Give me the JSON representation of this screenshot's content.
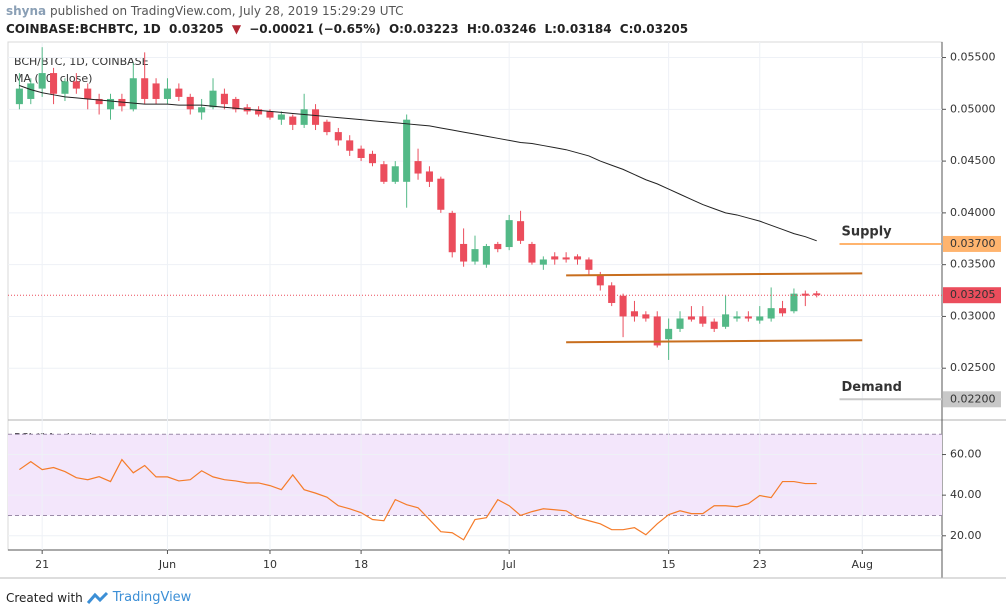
{
  "header": {
    "author": "shyna",
    "published": "published on TradingView.com, July 28, 2019 15:29:29 UTC",
    "symbol": "COINBASE:BCHBTC, 1D",
    "last": "0.03205",
    "change": "−0.00021 (−0.65%)",
    "ohlc": [
      "O:0.03223",
      "H:0.03246",
      "L:0.03184",
      "C:0.03205"
    ]
  },
  "footer": {
    "text": "Created with",
    "brand": "TradingView"
  },
  "chart_data": {
    "type": "candlestick",
    "title": "BCH/BTC, 1D, COINBASE",
    "x": [
      "2019-05-19",
      "2019-05-20",
      "2019-05-21",
      "2019-05-22",
      "2019-05-23",
      "2019-05-24",
      "2019-05-25",
      "2019-05-26",
      "2019-05-27",
      "2019-05-28",
      "2019-05-29",
      "2019-05-30",
      "2019-05-31",
      "2019-06-01",
      "2019-06-02",
      "2019-06-03",
      "2019-06-04",
      "2019-06-05",
      "2019-06-06",
      "2019-06-07",
      "2019-06-08",
      "2019-06-09",
      "2019-06-10",
      "2019-06-11",
      "2019-06-12",
      "2019-06-13",
      "2019-06-14",
      "2019-06-15",
      "2019-06-16",
      "2019-06-17",
      "2019-06-18",
      "2019-06-19",
      "2019-06-20",
      "2019-06-21",
      "2019-06-22",
      "2019-06-23",
      "2019-06-24",
      "2019-06-25",
      "2019-06-26",
      "2019-06-27",
      "2019-06-28",
      "2019-06-29",
      "2019-06-30",
      "2019-07-01",
      "2019-07-02",
      "2019-07-03",
      "2019-07-04",
      "2019-07-05",
      "2019-07-06",
      "2019-07-07",
      "2019-07-08",
      "2019-07-09",
      "2019-07-10",
      "2019-07-11",
      "2019-07-12",
      "2019-07-13",
      "2019-07-14",
      "2019-07-15",
      "2019-07-16",
      "2019-07-17",
      "2019-07-18",
      "2019-07-19",
      "2019-07-20",
      "2019-07-21",
      "2019-07-22",
      "2019-07-23",
      "2019-07-24",
      "2019-07-25",
      "2019-07-26",
      "2019-07-27",
      "2019-07-28"
    ],
    "open": [
      0.0505,
      0.051,
      0.052,
      0.0535,
      0.0515,
      0.0527,
      0.052,
      0.051,
      0.05,
      0.051,
      0.05,
      0.053,
      0.0525,
      0.051,
      0.052,
      0.0512,
      0.0497,
      0.0502,
      0.0515,
      0.051,
      0.0502,
      0.05,
      0.0498,
      0.049,
      0.0493,
      0.0485,
      0.05,
      0.0488,
      0.0478,
      0.047,
      0.0462,
      0.0457,
      0.0447,
      0.043,
      0.043,
      0.045,
      0.044,
      0.0433,
      0.04,
      0.037,
      0.0353,
      0.035,
      0.037,
      0.0367,
      0.0392,
      0.037,
      0.035,
      0.0358,
      0.0357,
      0.0358,
      0.0355,
      0.034,
      0.033,
      0.032,
      0.0305,
      0.0302,
      0.03,
      0.0278,
      0.0288,
      0.03,
      0.03,
      0.0295,
      0.029,
      0.0298,
      0.03,
      0.0296,
      0.0298,
      0.0308,
      0.0305,
      0.0322,
      0.03223
    ],
    "high": [
      0.0535,
      0.053,
      0.056,
      0.054,
      0.053,
      0.0535,
      0.0525,
      0.0515,
      0.0515,
      0.0515,
      0.0545,
      0.0555,
      0.053,
      0.053,
      0.0525,
      0.0515,
      0.051,
      0.053,
      0.052,
      0.0512,
      0.0505,
      0.0503,
      0.05,
      0.0498,
      0.0495,
      0.0515,
      0.0505,
      0.049,
      0.0482,
      0.0475,
      0.0465,
      0.046,
      0.045,
      0.045,
      0.0495,
      0.0462,
      0.0445,
      0.0435,
      0.0402,
      0.0385,
      0.0378,
      0.037,
      0.0372,
      0.0398,
      0.0402,
      0.0372,
      0.0358,
      0.0362,
      0.0362,
      0.036,
      0.0357,
      0.0343,
      0.0333,
      0.0322,
      0.0315,
      0.0305,
      0.0305,
      0.0298,
      0.0305,
      0.031,
      0.031,
      0.0298,
      0.032,
      0.0305,
      0.0305,
      0.031,
      0.0328,
      0.0315,
      0.0327,
      0.0325,
      0.03246
    ],
    "low": [
      0.05,
      0.0505,
      0.0512,
      0.0505,
      0.0508,
      0.0515,
      0.05,
      0.0495,
      0.049,
      0.0498,
      0.0498,
      0.0505,
      0.0505,
      0.0505,
      0.0508,
      0.0495,
      0.049,
      0.05,
      0.05,
      0.0497,
      0.0495,
      0.0493,
      0.049,
      0.0485,
      0.048,
      0.0482,
      0.048,
      0.0475,
      0.0465,
      0.0455,
      0.045,
      0.0445,
      0.0428,
      0.0428,
      0.0405,
      0.0432,
      0.0425,
      0.04,
      0.0357,
      0.0348,
      0.035,
      0.0347,
      0.0362,
      0.0364,
      0.037,
      0.035,
      0.0345,
      0.035,
      0.0352,
      0.035,
      0.034,
      0.0325,
      0.031,
      0.028,
      0.0295,
      0.0295,
      0.027,
      0.0258,
      0.0285,
      0.0295,
      0.029,
      0.0285,
      0.0288,
      0.0295,
      0.0295,
      0.0293,
      0.0295,
      0.03,
      0.0303,
      0.031,
      0.03184
    ],
    "close": [
      0.052,
      0.0525,
      0.0535,
      0.0515,
      0.0527,
      0.052,
      0.051,
      0.0505,
      0.051,
      0.0503,
      0.053,
      0.051,
      0.051,
      0.052,
      0.0512,
      0.05,
      0.0502,
      0.0518,
      0.0505,
      0.05,
      0.0498,
      0.0495,
      0.0492,
      0.0495,
      0.0485,
      0.05,
      0.0485,
      0.0478,
      0.047,
      0.046,
      0.0453,
      0.0448,
      0.043,
      0.0445,
      0.049,
      0.0438,
      0.043,
      0.0403,
      0.0362,
      0.0353,
      0.0365,
      0.0368,
      0.0365,
      0.0393,
      0.0373,
      0.0352,
      0.0355,
      0.0355,
      0.0355,
      0.0355,
      0.0345,
      0.033,
      0.0313,
      0.03,
      0.03,
      0.0298,
      0.0272,
      0.0288,
      0.0298,
      0.0297,
      0.0293,
      0.0288,
      0.0302,
      0.03,
      0.0298,
      0.03,
      0.0308,
      0.0303,
      0.0322,
      0.032,
      0.03205
    ],
    "up_color": "#53b987",
    "down_color": "#eb4d5c",
    "ma": {
      "name": "MA (50, close)",
      "color": "#222222",
      "values": [
        0.0523,
        0.0519,
        0.0516,
        0.0514,
        0.0512,
        0.0511,
        0.051,
        0.0509,
        0.0508,
        0.0507,
        0.0506,
        0.0505,
        0.0505,
        0.0505,
        0.0504,
        0.0504,
        0.0504,
        0.0503,
        0.0502,
        0.0501,
        0.05,
        0.0499,
        0.0498,
        0.0497,
        0.0496,
        0.0495,
        0.0494,
        0.0493,
        0.0492,
        0.0491,
        0.049,
        0.0489,
        0.0488,
        0.0487,
        0.0486,
        0.0485,
        0.0484,
        0.0482,
        0.048,
        0.0478,
        0.0476,
        0.0474,
        0.0472,
        0.047,
        0.0468,
        0.0467,
        0.0465,
        0.0463,
        0.0461,
        0.0458,
        0.0455,
        0.045,
        0.0446,
        0.0442,
        0.0437,
        0.0432,
        0.0428,
        0.0423,
        0.0418,
        0.0413,
        0.0408,
        0.0404,
        0.04,
        0.0398,
        0.0395,
        0.0392,
        0.0388,
        0.0384,
        0.038,
        0.0377,
        0.0373
      ]
    },
    "xlim": [
      "2019-05-18",
      "2019-08-08"
    ],
    "xticks": [
      {
        "value": "2019-05-21",
        "label": "21"
      },
      {
        "value": "2019-06-01",
        "label": "Jun"
      },
      {
        "value": "2019-06-10",
        "label": "10"
      },
      {
        "value": "2019-06-18",
        "label": "18"
      },
      {
        "value": "2019-07-01",
        "label": "Jul"
      },
      {
        "value": "2019-07-15",
        "label": "15"
      },
      {
        "value": "2019-07-23",
        "label": "23"
      },
      {
        "value": "2019-08-01",
        "label": "Aug"
      }
    ],
    "ylim": [
      0.02,
      0.0565
    ],
    "yticks": [
      {
        "value": 0.025,
        "label": "0.02500"
      },
      {
        "value": 0.03,
        "label": "0.03000"
      },
      {
        "value": 0.035,
        "label": "0.03500"
      },
      {
        "value": 0.04,
        "label": "0.04000"
      },
      {
        "value": 0.045,
        "label": "0.04500"
      },
      {
        "value": 0.05,
        "label": "0.05000"
      },
      {
        "value": 0.055,
        "label": "0.05500"
      }
    ],
    "grid": true,
    "price_lines": [
      {
        "value": 0.037,
        "label": "0.03700",
        "note": "Supply",
        "x_start": "2019-07-30",
        "color": "#ffb46e",
        "note_color": "#3d8b37"
      },
      {
        "value": 0.03205,
        "label": "0.03205",
        "x_start": "2019-05-18",
        "color": "#eb4d5c",
        "style": "dotted"
      },
      {
        "value": 0.022,
        "label": "0.02200",
        "note": "Demand",
        "x_start": "2019-07-30",
        "color": "#c8c8c8",
        "note_color": "#e0306a"
      }
    ],
    "trend_lines": [
      {
        "x": [
          "2019-07-06",
          "2019-08-01"
        ],
        "y": [
          0.03397,
          0.03416
        ],
        "color": "#c86e1e"
      },
      {
        "x": [
          "2019-07-06",
          "2019-08-01"
        ],
        "y": [
          0.02751,
          0.0277
        ],
        "color": "#c86e1e"
      }
    ],
    "rsi": {
      "name": "RSI (14, close)",
      "color": "#f57c2a",
      "band_color": "#f3e6fb",
      "values": [
        52.6,
        56.5,
        52.6,
        53.6,
        51.6,
        48.6,
        47.6,
        49.1,
        46.7,
        57.5,
        51,
        54.6,
        49,
        49,
        47,
        47.6,
        52,
        49,
        47.6,
        47,
        46,
        46,
        44.7,
        42.7,
        50,
        42.7,
        41,
        39,
        34.8,
        33.3,
        31.4,
        28,
        27.4,
        37.8,
        35.3,
        33.8,
        28,
        22,
        21.5,
        18,
        28,
        28.9,
        37.8,
        34.8,
        30,
        31.9,
        33.3,
        32.8,
        32.3,
        28.9,
        27.4,
        25.9,
        23,
        23,
        24,
        20.5,
        25.9,
        30.4,
        32.3,
        30.9,
        30.9,
        34.8,
        34.8,
        34.3,
        35.8,
        39.8,
        38.8,
        46.7,
        46.7,
        45.7,
        45.7
      ],
      "ylim": [
        13,
        77
      ],
      "yticks": [
        {
          "value": 20,
          "label": "20.00"
        },
        {
          "value": 40,
          "label": "40.00"
        },
        {
          "value": 60,
          "label": "60.00"
        }
      ],
      "bands": [
        30,
        70
      ]
    }
  }
}
